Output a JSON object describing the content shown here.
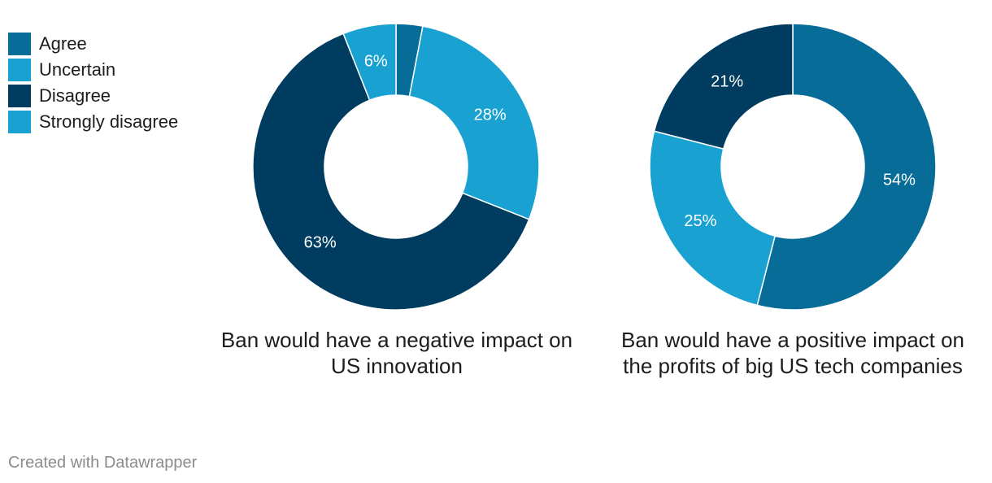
{
  "chart_data": [
    {
      "type": "pie",
      "variant": "donut",
      "title": "Ban would have a negative impact on US innovation",
      "categories": [
        "Agree",
        "Uncertain",
        "Disagree",
        "Strongly disagree"
      ],
      "values": [
        3,
        28,
        63,
        6
      ],
      "labels": [
        "",
        "28%",
        "63%",
        "6%"
      ]
    },
    {
      "type": "pie",
      "variant": "donut",
      "title": "Ban would have a positive impact on the profits of big US tech companies",
      "categories": [
        "Agree",
        "Uncertain",
        "Disagree",
        "Strongly disagree"
      ],
      "values": [
        54,
        25,
        21,
        0
      ],
      "labels": [
        "54%",
        "25%",
        "21%",
        ""
      ]
    }
  ],
  "legend": [
    {
      "label": "Agree",
      "color": "#076d98"
    },
    {
      "label": "Uncertain",
      "color": "#19a2d1"
    },
    {
      "label": "Disagree",
      "color": "#003c5f"
    },
    {
      "label": "Strongly disagree",
      "color": "#19a2d1"
    }
  ],
  "credit": "Created with Datawrapper"
}
